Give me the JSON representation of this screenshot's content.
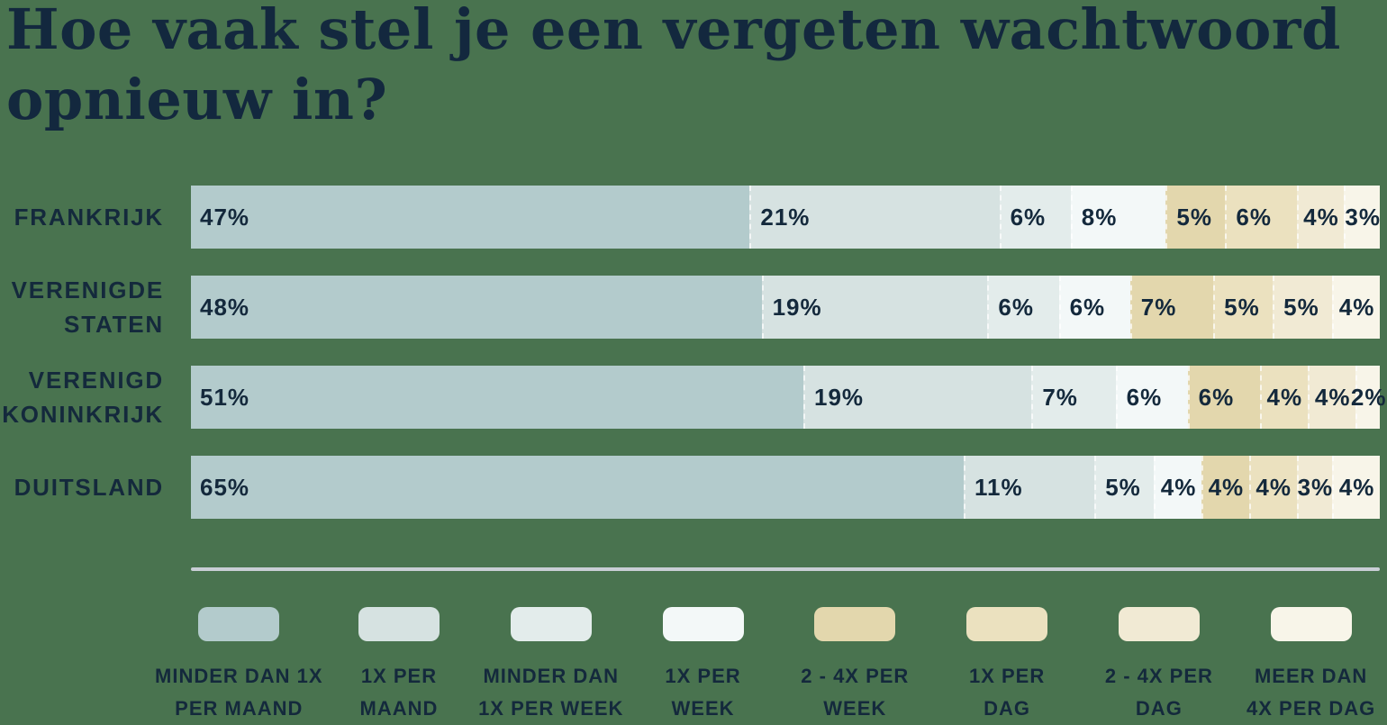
{
  "title": "Hoe vaak stel je een vergeten wachtwoord opnieuw in?",
  "title_lines": [
    "Hoe vaak stel je een vergeten wachtwoord",
    "opnieuw in?"
  ],
  "colors": {
    "background": "#49734f",
    "text": "#14293c",
    "title_text": "#13283e",
    "divider": "#c9ced5"
  },
  "chart_data": {
    "type": "bar",
    "stacked": true,
    "orientation": "horizontal",
    "unit": "%",
    "xlim": [
      0,
      100
    ],
    "legend_position": "bottom",
    "categories": [
      "Frankrijk",
      "Verenigde Staten",
      "Verenigd Koninkrijk",
      "Duitsland"
    ],
    "category_label_lines": [
      [
        "FRANKRIJK"
      ],
      [
        "VERENIGDE",
        "STATEN"
      ],
      [
        "VERENIGD",
        "KONINKRIJK"
      ],
      [
        "DUITSLAND"
      ]
    ],
    "series": [
      {
        "name": "MINDER DAN 1X PER MAAND",
        "label_lines": [
          "MINDER DAN 1X",
          "PER MAAND"
        ],
        "color": "#b3cbcc",
        "values": [
          47,
          48,
          51,
          65
        ]
      },
      {
        "name": "1X PER MAAND",
        "label_lines": [
          "1X PER",
          "MAAND"
        ],
        "color": "#d6e2e1",
        "values": [
          21,
          19,
          19,
          11
        ]
      },
      {
        "name": "MINDER DAN 1X PER WEEK",
        "label_lines": [
          "MINDER DAN",
          "1X PER WEEK"
        ],
        "color": "#e3eceb",
        "values": [
          6,
          6,
          7,
          5
        ]
      },
      {
        "name": "1X PER WEEK",
        "label_lines": [
          "1X PER",
          "WEEK"
        ],
        "color": "#f3f8f8",
        "values": [
          8,
          6,
          6,
          4
        ]
      },
      {
        "name": "2 - 4X PER WEEK",
        "label_lines": [
          "2 - 4X PER",
          "WEEK"
        ],
        "color": "#e3d7ad",
        "values": [
          5,
          7,
          6,
          4
        ]
      },
      {
        "name": "1X PER DAG",
        "label_lines": [
          "1X PER",
          "DAG"
        ],
        "color": "#ebe1bf",
        "values": [
          6,
          5,
          4,
          4
        ]
      },
      {
        "name": "2 - 4X PER DAG",
        "label_lines": [
          "2 - 4X PER",
          "DAG"
        ],
        "color": "#f1ead4",
        "values": [
          4,
          5,
          4,
          3
        ]
      },
      {
        "name": "MEER DAN 4X PER DAG",
        "label_lines": [
          "MEER DAN",
          "4X PER DAG"
        ],
        "color": "#f8f5e9",
        "values": [
          3,
          4,
          2,
          4
        ]
      }
    ]
  }
}
